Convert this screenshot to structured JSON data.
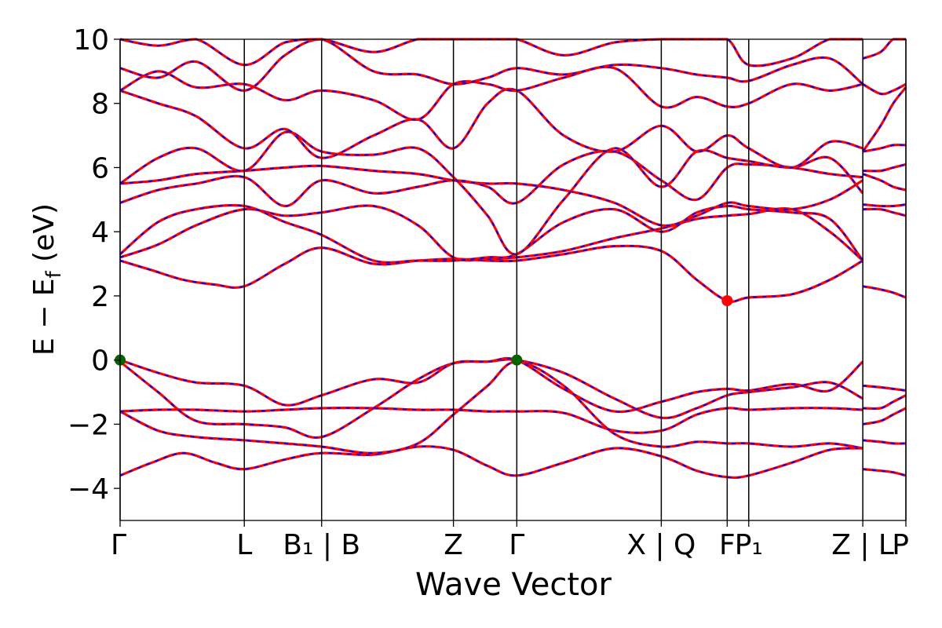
{
  "chart_data": {
    "type": "line",
    "title": "",
    "xlabel": "Wave Vector",
    "ylabel": "E − E_f (eV)",
    "ylabel_main": "E − E",
    "ylabel_sub": "f",
    "ylabel_unit": " (eV)",
    "ylim": [
      -5,
      10
    ],
    "xlim": [
      0,
      6.2
    ],
    "yticks": [
      -4,
      -2,
      0,
      2,
      4,
      6,
      8,
      10
    ],
    "ytick_labels": [
      "−4",
      "−2",
      "0",
      "2",
      "4",
      "6",
      "8",
      "10"
    ],
    "grid": false,
    "kpoints": [
      {
        "x": 0.0,
        "label": "Γ"
      },
      {
        "x": 0.98,
        "label": "L"
      },
      {
        "x": 1.59,
        "label": "B₁ | B"
      },
      {
        "x": 2.63,
        "label": "Z"
      },
      {
        "x": 3.13,
        "label": "Γ"
      },
      {
        "x": 4.27,
        "label": "X | Q"
      },
      {
        "x": 4.79,
        "label": "F"
      },
      {
        "x": 4.96,
        "label": "P₁"
      },
      {
        "x": 5.86,
        "label": "Z | L"
      },
      {
        "x": 6.2,
        "label": "P"
      }
    ],
    "vbm_points": [
      {
        "x": 0.0,
        "y": 0.0
      },
      {
        "x": 3.13,
        "y": 0.0
      }
    ],
    "cbm_points": [
      {
        "x": 4.79,
        "y": 1.85
      }
    ],
    "series_colors": {
      "band": "#ff0000",
      "band_dash": "#0000ff",
      "vbm": "#006400",
      "cbm": "#ff0000"
    },
    "bands": [
      {
        "x": [
          0,
          0.25,
          0.5,
          0.75,
          0.98,
          1.3,
          1.59,
          2.0,
          2.35,
          2.63,
          2.9,
          3.13,
          3.5,
          3.9,
          4.27,
          4.55,
          4.79,
          4.96,
          5.3,
          5.6,
          5.86
        ],
        "y": [
          -3.6,
          -3.2,
          -2.9,
          -3.2,
          -3.4,
          -3.1,
          -2.9,
          -2.95,
          -2.7,
          -2.8,
          -3.3,
          -3.6,
          -3.2,
          -2.75,
          -3.0,
          -3.45,
          -3.65,
          -3.6,
          -3.2,
          -2.8,
          -2.75
        ]
      },
      {
        "x": [
          0,
          0.3,
          0.6,
          0.98,
          1.3,
          1.59,
          2.0,
          2.35,
          2.63,
          2.9,
          3.13,
          3.5,
          3.9,
          4.27,
          4.55,
          4.79,
          4.96,
          5.3,
          5.6,
          5.86
        ],
        "y": [
          -1.6,
          -2.2,
          -2.4,
          -2.5,
          -2.6,
          -2.7,
          -2.9,
          -2.6,
          -1.7,
          -0.8,
          -0.05,
          -0.8,
          -2.3,
          -2.7,
          -2.55,
          -2.6,
          -2.6,
          -2.7,
          -2.6,
          -2.75
        ]
      },
      {
        "x": [
          0,
          0.3,
          0.6,
          0.98,
          1.3,
          1.59,
          2.0,
          2.35,
          2.63,
          2.9,
          3.13,
          3.5,
          3.9,
          4.27,
          4.55,
          4.79,
          4.96,
          5.3,
          5.6,
          5.86
        ],
        "y": [
          -1.6,
          -1.55,
          -1.55,
          -1.6,
          -1.55,
          -1.5,
          -1.5,
          -1.55,
          -1.55,
          -1.6,
          -1.6,
          -1.65,
          -2.2,
          -2.2,
          -1.7,
          -1.5,
          -1.55,
          -1.5,
          -1.5,
          -1.55
        ]
      },
      {
        "x": [
          0,
          0.3,
          0.6,
          0.98,
          1.3,
          1.59,
          2.0,
          2.35,
          2.63,
          2.9,
          3.13,
          3.5,
          3.9,
          4.27,
          4.55,
          4.79,
          4.96,
          5.3,
          5.6,
          5.86
        ],
        "y": [
          -0.05,
          -1.0,
          -1.9,
          -2.0,
          -2.1,
          -2.4,
          -1.5,
          -0.6,
          -0.1,
          -0.05,
          0.0,
          -0.4,
          -1.2,
          -1.8,
          -1.5,
          -1.1,
          -1.0,
          -0.85,
          -0.7,
          -1.2
        ]
      },
      {
        "x": [
          0,
          0.3,
          0.6,
          0.98,
          1.3,
          1.59,
          2.0,
          2.35,
          2.63,
          2.9,
          3.13,
          3.5,
          3.9,
          4.27,
          4.55,
          4.79,
          4.96,
          5.3,
          5.6,
          5.86
        ],
        "y": [
          0.0,
          -0.4,
          -0.7,
          -0.8,
          -1.4,
          -1.1,
          -0.6,
          -0.7,
          -0.1,
          -0.05,
          0.0,
          -0.9,
          -1.6,
          -1.3,
          -1.0,
          -0.9,
          -0.95,
          -0.75,
          -0.95,
          -0.05
        ]
      },
      {
        "x": [
          0,
          0.25,
          0.5,
          0.75,
          0.98,
          1.3,
          1.59,
          2.0,
          2.35,
          2.63,
          2.9,
          3.13,
          3.5,
          3.9,
          4.27,
          4.55,
          4.79,
          4.96,
          5.3,
          5.6,
          5.86
        ],
        "y": [
          3.1,
          2.8,
          2.5,
          2.35,
          2.3,
          3.0,
          3.5,
          3.0,
          3.1,
          3.15,
          3.1,
          3.1,
          3.3,
          3.55,
          3.4,
          2.5,
          1.85,
          1.95,
          2.05,
          2.5,
          3.1
        ]
      },
      {
        "x": [
          0,
          0.3,
          0.6,
          0.98,
          1.3,
          1.59,
          2.0,
          2.35,
          2.63,
          2.9,
          3.13,
          3.5,
          3.9,
          4.27,
          4.55,
          4.79,
          4.96,
          5.3,
          5.6,
          5.86
        ],
        "y": [
          3.2,
          3.6,
          4.2,
          4.7,
          4.5,
          4.6,
          4.8,
          4.2,
          3.2,
          3.15,
          3.2,
          3.4,
          3.8,
          4.1,
          4.4,
          4.5,
          4.55,
          4.7,
          4.0,
          3.1
        ]
      },
      {
        "x": [
          0,
          0.3,
          0.6,
          0.98,
          1.3,
          1.59,
          2.0,
          2.35,
          2.63,
          2.9,
          3.13,
          3.5,
          3.9,
          4.27,
          4.55,
          4.79,
          4.96,
          5.3,
          5.6,
          5.86
        ],
        "y": [
          3.3,
          4.3,
          4.7,
          4.8,
          4.3,
          3.9,
          3.1,
          3.1,
          3.1,
          3.2,
          3.3,
          4.3,
          4.7,
          4.0,
          4.6,
          4.8,
          4.7,
          4.6,
          4.4,
          3.1
        ]
      },
      {
        "x": [
          0,
          0.3,
          0.6,
          0.98,
          1.3,
          1.59,
          2.0,
          2.35,
          2.63,
          2.9,
          3.13,
          3.5,
          3.9,
          4.27,
          4.55,
          4.79,
          4.96,
          5.3,
          5.6,
          5.86
        ],
        "y": [
          5.5,
          5.6,
          5.8,
          5.9,
          6.0,
          6.05,
          5.9,
          5.8,
          5.6,
          5.5,
          5.5,
          5.3,
          4.9,
          4.2,
          4.5,
          4.9,
          4.8,
          4.7,
          5.0,
          5.6
        ]
      },
      {
        "x": [
          0,
          0.3,
          0.6,
          0.98,
          1.3,
          1.59,
          2.0,
          2.35,
          2.63,
          2.9,
          3.13,
          3.5,
          3.9,
          4.27,
          4.55,
          4.79,
          4.96,
          5.3,
          5.6,
          5.86
        ],
        "y": [
          4.9,
          5.3,
          5.5,
          5.7,
          4.8,
          5.6,
          5.2,
          5.4,
          5.6,
          5.4,
          4.9,
          6.1,
          6.5,
          5.6,
          5.0,
          6.0,
          6.1,
          6.0,
          5.8,
          5.7
        ]
      },
      {
        "x": [
          0,
          0.3,
          0.6,
          0.98,
          1.3,
          1.59,
          2.0,
          2.35,
          2.63,
          2.9,
          3.13,
          3.5,
          3.9,
          4.27,
          4.55,
          4.79,
          4.96,
          5.3,
          5.6,
          5.86
        ],
        "y": [
          5.5,
          6.3,
          6.6,
          5.9,
          7.1,
          6.5,
          6.4,
          6.6,
          5.7,
          4.5,
          3.3,
          5.0,
          6.6,
          5.4,
          6.5,
          6.3,
          6.2,
          6.0,
          6.3,
          5.2
        ]
      },
      {
        "x": [
          0,
          0.3,
          0.6,
          0.98,
          1.3,
          1.59,
          2.0,
          2.35,
          2.63,
          2.9,
          3.13,
          3.5,
          3.9,
          4.27,
          4.55,
          4.79,
          4.96,
          5.3,
          5.6,
          5.86
        ],
        "y": [
          8.4,
          8.0,
          7.6,
          6.6,
          7.2,
          6.3,
          7.0,
          7.5,
          6.6,
          8.0,
          8.4,
          7.0,
          6.5,
          7.3,
          6.5,
          7.0,
          6.6,
          6.0,
          6.8,
          6.6
        ]
      },
      {
        "x": [
          0,
          0.3,
          0.6,
          0.98,
          1.3,
          1.59,
          2.0,
          2.35,
          2.63,
          2.9,
          3.13,
          3.5,
          3.9,
          4.27,
          4.55,
          4.79,
          4.96,
          5.3,
          5.6,
          5.86
        ],
        "y": [
          8.4,
          9.0,
          8.5,
          8.6,
          8.1,
          8.4,
          8.1,
          7.5,
          8.6,
          8.6,
          8.4,
          8.8,
          9.1,
          7.9,
          8.2,
          7.9,
          8.0,
          8.6,
          8.4,
          8.6
        ]
      },
      {
        "x": [
          0,
          0.3,
          0.6,
          0.98,
          1.3,
          1.59,
          2.0,
          2.35,
          2.63,
          2.9,
          3.13,
          3.5,
          3.9,
          4.27,
          4.55,
          4.79,
          4.96,
          5.3,
          5.6,
          5.86
        ],
        "y": [
          9.1,
          8.8,
          9.3,
          8.4,
          9.5,
          10.0,
          9.0,
          8.9,
          8.6,
          8.8,
          9.1,
          8.9,
          9.2,
          9.1,
          8.9,
          8.8,
          8.7,
          9.2,
          9.4,
          8.6
        ]
      },
      {
        "x": [
          0,
          0.3,
          0.6,
          0.98,
          1.3,
          1.59,
          2.0,
          2.35,
          2.63,
          2.9,
          3.13,
          3.5,
          3.9,
          4.27,
          4.55,
          4.79,
          4.96,
          5.3,
          5.6,
          5.86
        ],
        "y": [
          10.0,
          9.8,
          10.0,
          9.2,
          9.9,
          10.2,
          9.6,
          10.3,
          10.5,
          10.2,
          10.0,
          9.5,
          9.9,
          10.1,
          10.4,
          10.3,
          9.2,
          9.4,
          10.2,
          10.0
        ]
      },
      {
        "x": [
          5.86,
          6.0,
          6.1,
          6.2
        ],
        "y": [
          -3.4,
          -3.45,
          -3.5,
          -3.6
        ]
      },
      {
        "x": [
          5.86,
          6.0,
          6.1,
          6.2
        ],
        "y": [
          -2.5,
          -2.55,
          -2.6,
          -2.6
        ]
      },
      {
        "x": [
          5.86,
          6.0,
          6.1,
          6.2
        ],
        "y": [
          -2.0,
          -1.9,
          -1.7,
          -1.5
        ]
      },
      {
        "x": [
          5.86,
          6.0,
          6.1,
          6.2
        ],
        "y": [
          -1.5,
          -1.5,
          -1.3,
          -1.1
        ]
      },
      {
        "x": [
          5.86,
          6.0,
          6.1,
          6.2
        ],
        "y": [
          -0.8,
          -0.85,
          -0.9,
          -0.95
        ]
      },
      {
        "x": [
          5.86,
          6.0,
          6.1,
          6.2
        ],
        "y": [
          2.3,
          2.2,
          2.1,
          1.95
        ]
      },
      {
        "x": [
          5.86,
          6.0,
          6.1,
          6.2
        ],
        "y": [
          4.7,
          4.7,
          4.6,
          4.5
        ]
      },
      {
        "x": [
          5.86,
          6.0,
          6.1,
          6.2
        ],
        "y": [
          4.85,
          4.8,
          4.8,
          4.85
        ]
      },
      {
        "x": [
          5.86,
          6.0,
          6.1,
          6.2
        ],
        "y": [
          5.8,
          5.6,
          5.4,
          5.3
        ]
      },
      {
        "x": [
          5.86,
          6.0,
          6.1,
          6.2
        ],
        "y": [
          5.9,
          5.9,
          6.0,
          6.1
        ]
      },
      {
        "x": [
          5.86,
          6.0,
          6.1,
          6.2
        ],
        "y": [
          6.5,
          6.6,
          6.7,
          6.7
        ]
      },
      {
        "x": [
          5.86,
          6.0,
          6.1,
          6.2
        ],
        "y": [
          6.5,
          7.3,
          8.0,
          8.5
        ]
      },
      {
        "x": [
          5.86,
          6.0,
          6.1,
          6.2
        ],
        "y": [
          8.6,
          8.3,
          8.4,
          8.6
        ]
      },
      {
        "x": [
          5.86,
          6.0,
          6.1,
          6.2
        ],
        "y": [
          9.4,
          9.6,
          10.0,
          10.2
        ]
      }
    ]
  }
}
